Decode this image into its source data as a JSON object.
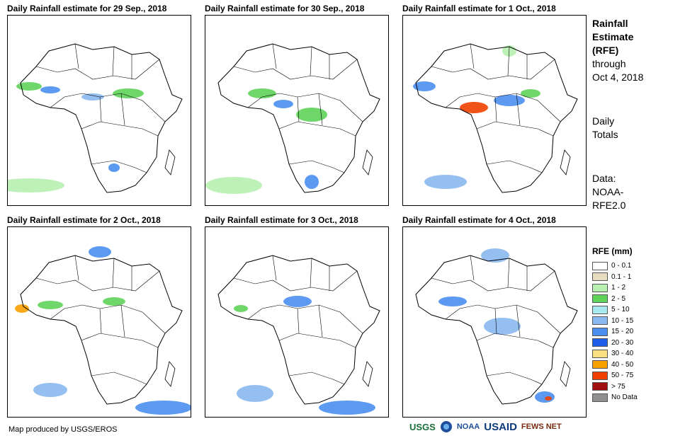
{
  "panels": [
    {
      "title": "Daily Rainfall estimate for 29 Sep., 2018"
    },
    {
      "title": "Daily Rainfall estimate for 30 Sep., 2018"
    },
    {
      "title": "Daily Rainfall estimate for 1 Oct., 2018"
    },
    {
      "title": "Daily Rainfall estimate for 2 Oct., 2018"
    },
    {
      "title": "Daily Rainfall estimate for 3 Oct., 2018"
    },
    {
      "title": "Daily Rainfall estimate for 4 Oct., 2018"
    }
  ],
  "sidebar": {
    "heading": [
      "Rainfall",
      "Estimate",
      "(RFE)"
    ],
    "through": [
      "through",
      "Oct 4, 2018"
    ],
    "totals": [
      "Daily",
      "Totals"
    ],
    "data": [
      "Data:",
      "NOAA-",
      "RFE2.0"
    ]
  },
  "legend": {
    "title": "RFE (mm)",
    "items": [
      {
        "label": "0 - 0.1",
        "color": "#ffffff"
      },
      {
        "label": "0.1 - 1",
        "color": "#e8dcc0"
      },
      {
        "label": "1 - 2",
        "color": "#b7f0b0"
      },
      {
        "label": "2 - 5",
        "color": "#5fd35a"
      },
      {
        "label": "5 - 10",
        "color": "#a8e8f0"
      },
      {
        "label": "10 - 15",
        "color": "#8ab8f0"
      },
      {
        "label": "15 - 20",
        "color": "#4a8ef0"
      },
      {
        "label": "20 - 30",
        "color": "#1c5ee8"
      },
      {
        "label": "30 - 40",
        "color": "#f8e080"
      },
      {
        "label": "40 - 50",
        "color": "#f8a000"
      },
      {
        "label": "50 - 75",
        "color": "#f04000"
      },
      {
        "label": "> 75",
        "color": "#a01010"
      },
      {
        "label": "No Data",
        "color": "#909090"
      }
    ]
  },
  "credit": "Map produced by USGS/EROS",
  "logos": [
    "USGS",
    "NOAA",
    "USAID",
    "FEWS NET"
  ]
}
